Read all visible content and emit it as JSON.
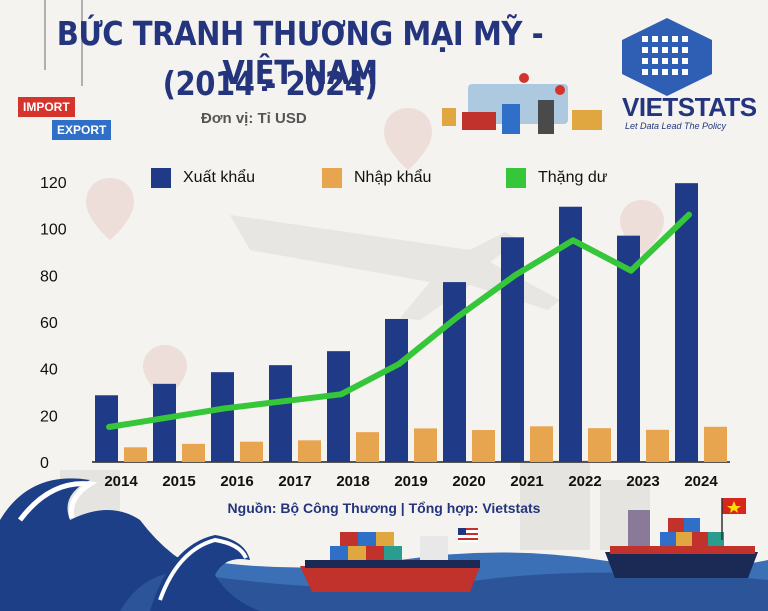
{
  "header": {
    "title_line1": "BỨC TRANH THƯƠNG MẠI MỸ - VIỆT NAM",
    "title_line2": "(2014 - 2024)",
    "unit": "Đơn vị: Tỉ USD",
    "badge_import": "IMPORT",
    "badge_export": "EXPORT"
  },
  "logo": {
    "name": "VIETSTATS",
    "tagline": "Let Data Lead The Policy"
  },
  "footer": {
    "source": "Nguồn: Bộ Công Thương  | Tổng hợp: Vietstats"
  },
  "colors": {
    "export": "#1f3a86",
    "import": "#e8a550",
    "surplus": "#35c639",
    "title": "#24357e"
  },
  "chart_data": {
    "type": "bar",
    "categories": [
      "2014",
      "2015",
      "2016",
      "2017",
      "2018",
      "2019",
      "2020",
      "2021",
      "2022",
      "2023",
      "2024"
    ],
    "series": [
      {
        "name": "Xuất khẩu",
        "type": "bar",
        "values": [
          28.6,
          33.5,
          38.5,
          41.5,
          47.5,
          61.3,
          77.1,
          96.3,
          109.4,
          97.0,
          119.5
        ]
      },
      {
        "name": "Nhập khẩu",
        "type": "bar",
        "values": [
          6.3,
          7.8,
          8.7,
          9.3,
          12.8,
          14.4,
          13.7,
          15.3,
          14.5,
          13.8,
          15.1
        ]
      },
      {
        "name": "Thặng dư",
        "type": "line",
        "values": [
          15.0,
          19.0,
          23.0,
          26.0,
          29.0,
          42.0,
          62.0,
          80.0,
          95.0,
          82.0,
          106.0
        ]
      }
    ],
    "y_ticks": [
      "0",
      "20",
      "40",
      "60",
      "80",
      "100",
      "120"
    ],
    "ylim": [
      0,
      120
    ],
    "legend_position": "top"
  }
}
